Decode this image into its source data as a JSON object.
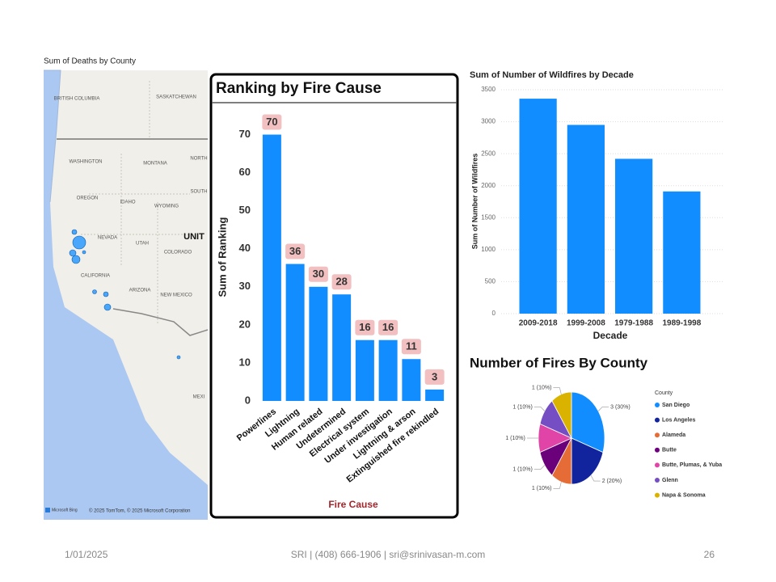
{
  "chart_data": [
    {
      "type": "bar",
      "title": "Ranking by Fire Cause",
      "x_label": "Fire Cause",
      "y_label": "Sum of Ranking",
      "categories": [
        "Powerlines",
        "Lightning",
        "Human related",
        "Undetermined",
        "Electrical system",
        "Under investigation",
        "Lightning & arson",
        "Extinguished fire rekindled"
      ],
      "values": [
        70,
        36,
        30,
        28,
        16,
        16,
        11,
        3
      ],
      "color": "#118DFF",
      "ylim": [
        0,
        75
      ],
      "yticks": [
        0,
        10,
        20,
        30,
        40,
        50,
        60,
        70
      ],
      "grid": false
    },
    {
      "type": "bar",
      "title": "Sum of Number of Wildfires by Decade",
      "x_label": "Decade",
      "y_label": "Sum of Number of Wildfires",
      "categories": [
        "2009-2018",
        "1999-2008",
        "1979-1988",
        "1989-1998"
      ],
      "values": [
        3360,
        2950,
        2420,
        1910
      ],
      "color": "#118DFF",
      "ylim": [
        0,
        3500
      ],
      "yticks": [
        0,
        500,
        1000,
        1500,
        2000,
        2500,
        3000,
        3500
      ],
      "grid": true
    },
    {
      "type": "pie",
      "title": "Number of Fires By County",
      "legend_title": "County",
      "categories": [
        "San Diego",
        "Los Angeles",
        "Alameda",
        "Butte",
        "Butte, Plumas, & Yuba",
        "Glenn",
        "Napa & Sonoma"
      ],
      "values": [
        3,
        2,
        1,
        1,
        1,
        1,
        1
      ],
      "value_labels": [
        "3 (30%)",
        "2 (20%)",
        "1 (10%)",
        "1 (10%)",
        "1 (10%)",
        "1 (10%)",
        "1 (10%)"
      ],
      "colors": [
        "#118DFF",
        "#12239E",
        "#E66C37",
        "#6B007B",
        "#E044A7",
        "#744EC2",
        "#D9B300"
      ],
      "legend": "right"
    }
  ],
  "map": {
    "title": "Sum of Deaths by County",
    "labels": [
      "BRITISH COLUMBIA",
      "SASKATCHEWAN",
      "WASHINGTON",
      "MONTANA",
      "NORTH",
      "OREGON",
      "IDAHO",
      "WYOMING",
      "SOUTH",
      "NEVADA",
      "UTAH",
      "UNIT",
      "COLORADO",
      "CALIFORNIA",
      "ARIZONA",
      "NEW MEXICO",
      "MEXI"
    ],
    "logo": "Microsoft Bing",
    "copyright": "© 2025 TomTom, © 2025 Microsoft Corporation"
  },
  "footer": {
    "date": "1/01/2025",
    "contact": "SRI | (408) 666-1906 | sri@srinivasan-m.com",
    "page": "26"
  }
}
